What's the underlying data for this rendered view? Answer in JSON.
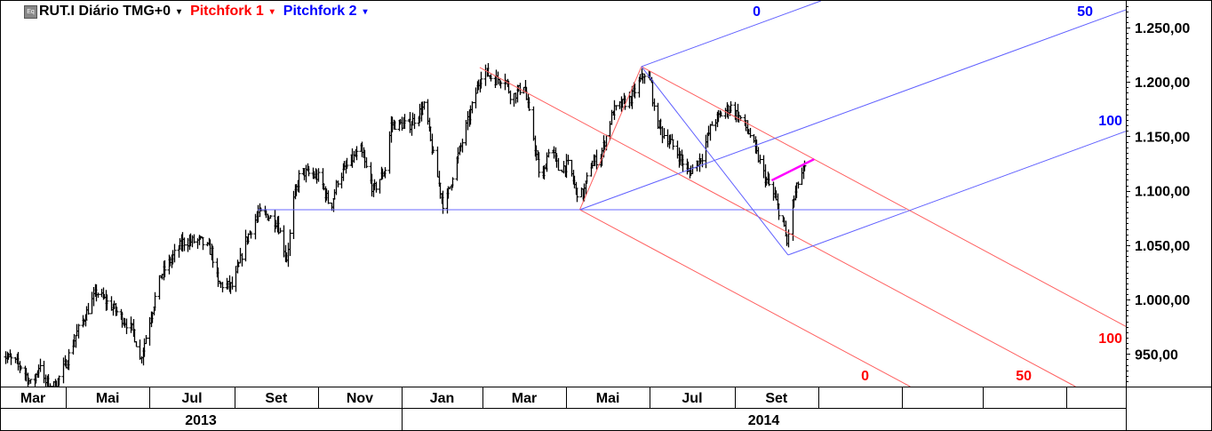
{
  "header": {
    "symbol_icon": "equity-icon",
    "symbol_label": "RUT.I Diário TMG+0",
    "pitchfork1_label": "Pitchfork 1",
    "pitchfork2_label": "Pitchfork 2",
    "dropdown_glyph": "▾"
  },
  "colors": {
    "bars": "#000000",
    "pitchfork1": "#ff0000",
    "pitchfork2": "#0000ff",
    "highlight": "#ff00ff",
    "grid": "#000000"
  },
  "chart_data": {
    "type": "ohlc-bar",
    "title": "RUT.I Diário TMG+0",
    "ylim": [
      920,
      1275
    ],
    "y_ticks": [
      1250,
      1200,
      1150,
      1100,
      1050,
      1000,
      950
    ],
    "y_tick_labels": [
      "1.250,00",
      "1.200,00",
      "1.150,00",
      "1.100,00",
      "1.050,00",
      "1.000,00",
      "950,00"
    ],
    "x_month_boundaries": [
      "2013-03-01",
      "2013-05-01",
      "2013-07-01",
      "2013-09-01",
      "2013-11-01",
      "2014-01-01",
      "2014-03-01",
      "2014-05-01",
      "2014-07-01",
      "2014-09-01",
      "2014-11-01",
      "2015-01-01",
      "2015-03-01",
      "2015-05-01"
    ],
    "x_month_labels": [
      "Mar",
      "Mai",
      "Jul",
      "Set",
      "Nov",
      "Jan",
      "Mar",
      "Mai",
      "Jul",
      "Set",
      "",
      "",
      "",
      ""
    ],
    "x_year_boundaries": [
      "2013-01-01",
      "2014-01-01"
    ],
    "x_year_labels": [
      "2013",
      "2014"
    ],
    "price_pivots": [
      [
        "2013-03-14",
        951
      ],
      [
        "2013-03-30",
        938
      ],
      [
        "2013-04-06",
        920
      ],
      [
        "2013-04-12",
        942
      ],
      [
        "2013-04-15",
        924
      ],
      [
        "2013-04-23",
        920
      ],
      [
        "2013-05-02",
        945
      ],
      [
        "2013-05-08",
        967
      ],
      [
        "2013-05-23",
        1007
      ],
      [
        "2013-06-06",
        990
      ],
      [
        "2013-06-19",
        971
      ],
      [
        "2013-06-24",
        945
      ],
      [
        "2013-07-09",
        1022
      ],
      [
        "2013-07-25",
        1053
      ],
      [
        "2013-08-07",
        1054
      ],
      [
        "2013-08-15",
        1044
      ],
      [
        "2013-08-20",
        1014
      ],
      [
        "2013-08-31",
        1012
      ],
      [
        "2013-09-08",
        1051
      ],
      [
        "2013-09-18",
        1079
      ],
      [
        "2013-09-24",
        1078
      ],
      [
        "2013-10-02",
        1071
      ],
      [
        "2013-10-09",
        1038
      ],
      [
        "2013-10-14",
        1091
      ],
      [
        "2013-10-19",
        1118
      ],
      [
        "2013-11-02",
        1112
      ],
      [
        "2013-11-10",
        1083
      ],
      [
        "2013-11-15",
        1110
      ],
      [
        "2013-11-25",
        1128
      ],
      [
        "2013-12-02",
        1137
      ],
      [
        "2013-12-11",
        1100
      ],
      [
        "2013-12-20",
        1120
      ],
      [
        "2013-12-24",
        1161
      ],
      [
        "2014-01-07",
        1161
      ],
      [
        "2014-01-18",
        1179
      ],
      [
        "2014-01-22",
        1145
      ],
      [
        "2014-01-29",
        1100
      ],
      [
        "2014-02-01",
        1083
      ],
      [
        "2014-02-08",
        1120
      ],
      [
        "2014-02-14",
        1145
      ],
      [
        "2014-02-21",
        1177
      ],
      [
        "2014-03-01",
        1212
      ],
      [
        "2014-03-09",
        1202
      ],
      [
        "2014-03-17",
        1204
      ],
      [
        "2014-03-22",
        1185
      ],
      [
        "2014-03-31",
        1198
      ],
      [
        "2014-04-07",
        1149
      ],
      [
        "2014-04-09",
        1132
      ],
      [
        "2014-04-13",
        1105
      ],
      [
        "2014-04-19",
        1145
      ],
      [
        "2014-04-25",
        1120
      ],
      [
        "2014-05-03",
        1124
      ],
      [
        "2014-05-08",
        1100
      ],
      [
        "2014-05-13",
        1096
      ],
      [
        "2014-05-19",
        1124
      ],
      [
        "2014-05-26",
        1132
      ],
      [
        "2014-06-04",
        1173
      ],
      [
        "2014-06-17",
        1185
      ],
      [
        "2014-06-27",
        1208
      ],
      [
        "2014-07-02",
        1198
      ],
      [
        "2014-07-04",
        1173
      ],
      [
        "2014-07-10",
        1153
      ],
      [
        "2014-07-16",
        1145
      ],
      [
        "2014-07-26",
        1124
      ],
      [
        "2014-07-29",
        1116
      ],
      [
        "2014-08-08",
        1132
      ],
      [
        "2014-08-15",
        1161
      ],
      [
        "2014-08-24",
        1173
      ],
      [
        "2014-08-29",
        1177
      ],
      [
        "2014-09-06",
        1165
      ],
      [
        "2014-09-13",
        1149
      ],
      [
        "2014-09-16",
        1137
      ],
      [
        "2014-09-23",
        1112
      ],
      [
        "2014-09-28",
        1100
      ],
      [
        "2014-10-06",
        1071
      ],
      [
        "2014-10-09",
        1051
      ],
      [
        "2014-10-12",
        1083
      ],
      [
        "2014-10-18",
        1112
      ],
      [
        "2014-10-22",
        1120
      ]
    ],
    "pitchfork1": {
      "name": "Pitchfork 1",
      "anchors": [
        [
          "2014-02-27",
          1213.3
        ],
        [
          "2014-05-11",
          1082.6
        ],
        [
          "2014-06-25",
          1214.1
        ]
      ],
      "lines": [
        {
          "level": "50",
          "from": [
            "2014-02-27",
            1213.3
          ],
          "to": [
            "2015-06-13",
            895.6
          ]
        },
        {
          "level": "0",
          "from": [
            "2014-05-11",
            1082.6
          ],
          "to": [
            "2015-06-13",
            814.3
          ]
        },
        {
          "level": "100",
          "from": [
            "2014-06-25",
            1214.1
          ],
          "to": [
            "2015-06-13",
            975.6
          ]
        },
        {
          "level": "",
          "from": [
            "2014-05-11",
            1082.6
          ],
          "to": [
            "2014-06-25",
            1214.1
          ]
        }
      ],
      "level_labels": [
        "0",
        "50",
        "100"
      ]
    },
    "pitchfork2": {
      "name": "Pitchfork 2",
      "anchors": [
        [
          "2014-05-11",
          1082.6
        ],
        [
          "2014-06-25",
          1214.1
        ],
        [
          "2014-10-10",
          1041.0
        ]
      ],
      "lines": [
        {
          "level": "0",
          "from": [
            "2014-06-25",
            1214.1
          ],
          "to": [
            "2015-06-13",
            1377.0
          ]
        },
        {
          "level": "50",
          "from": [
            "2014-05-11",
            1082.6
          ],
          "to": [
            "2015-06-13",
            1266.1
          ]
        },
        {
          "level": "100",
          "from": [
            "2014-10-10",
            1041.0
          ],
          "to": [
            "2015-06-13",
            1154.5
          ]
        },
        {
          "level": "",
          "from": [
            "2014-06-25",
            1214.1
          ],
          "to": [
            "2014-10-10",
            1041.0
          ]
        }
      ],
      "level_labels": [
        "0",
        "50",
        "100"
      ]
    },
    "horizontal_line": {
      "price": 1082.6,
      "from": "2013-09-18",
      "to": "2015-01-04"
    },
    "highlight_segment": {
      "from": [
        "2014-09-28",
        1109.5
      ],
      "to": [
        "2014-10-29",
        1129.0
      ]
    }
  }
}
